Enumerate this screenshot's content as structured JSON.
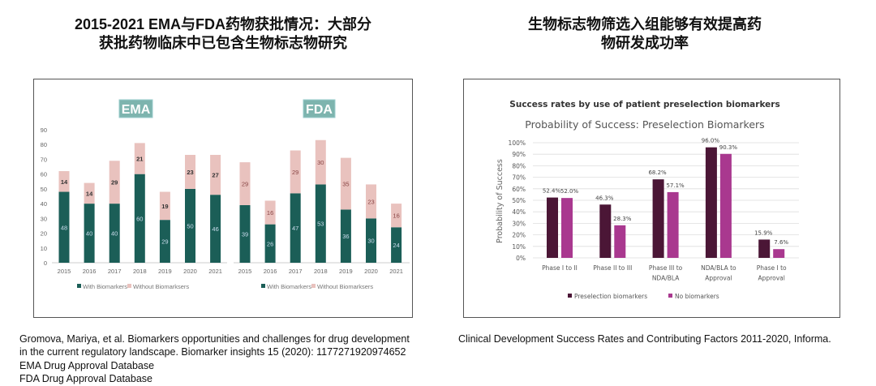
{
  "left_title": [
    "2015-2021  EMA与FDA药物获批情况：大部分",
    "获批药物临床中已包含生物标志物研究"
  ],
  "right_title": [
    "生物标志物筛选入组能够有效提高药",
    "物研发成功率"
  ],
  "left_caption": [
    "Gromova, Mariya, et al. Biomarkers opportunities and challenges for drug development",
    "in the current regulatory landscape. Biomarker insights 15 (2020): 1177271920974652",
    "EMA Drug Approval Database",
    "FDA Drug Approval Database"
  ],
  "right_caption": "Clinical Development Success Rates and Contributing Factors 2011-2020,  Informa.",
  "colors": {
    "with": "#1b5e57",
    "without": "#e9c2be",
    "badge": "#7db4ae",
    "pre": "#4b1636",
    "nob": "#a9388f"
  },
  "chart_data": [
    {
      "type": "bar",
      "stacked": true,
      "panels": [
        {
          "name": "EMA",
          "categories": [
            "2015",
            "2016",
            "2017",
            "2018",
            "2019",
            "2020",
            "2021"
          ],
          "series": [
            {
              "name": "With Biomarkers",
              "values": [
                48,
                40,
                40,
                60,
                29,
                50,
                46
              ]
            },
            {
              "name": "Without Biomarksers",
              "values": [
                14,
                14,
                29,
                21,
                19,
                23,
                27
              ]
            }
          ]
        },
        {
          "name": "FDA",
          "categories": [
            "2015",
            "2016",
            "2017",
            "2018",
            "2019",
            "2020",
            "2021"
          ],
          "series": [
            {
              "name": "With Biomarkers",
              "values": [
                39,
                26,
                47,
                53,
                36,
                30,
                24
              ]
            },
            {
              "name": "Without Biomarksers",
              "values": [
                29,
                16,
                29,
                30,
                35,
                23,
                16
              ]
            }
          ]
        }
      ],
      "yticks": [
        0,
        10,
        20,
        30,
        40,
        50,
        60,
        70,
        80,
        90
      ],
      "ylim": [
        0,
        90
      ],
      "legend": "bottom"
    },
    {
      "type": "bar",
      "header": "Success rates by use of patient preselection biomarkers",
      "title": "Probability of Success: Preselection Biomarkers",
      "ylabel": "Probability of Success",
      "categories": [
        [
          "Phase I to II"
        ],
        [
          "Phase II to III"
        ],
        [
          "Phase III to",
          "NDA/BLA"
        ],
        [
          "NDA/BLA to",
          "Approval"
        ],
        [
          "Phase I to",
          "Approval"
        ]
      ],
      "series": [
        {
          "name": "Preselection biomarkers",
          "values": [
            52.4,
            46.3,
            68.2,
            96.0,
            15.9
          ]
        },
        {
          "name": "No biomarkers",
          "values": [
            52.0,
            28.3,
            57.1,
            90.3,
            7.6
          ]
        }
      ],
      "yticks": [
        "0%",
        "10%",
        "20%",
        "30%",
        "40%",
        "50%",
        "60%",
        "70%",
        "80%",
        "90%",
        "100%"
      ],
      "ylim": [
        0,
        100
      ],
      "grid": true,
      "legend": "bottom"
    }
  ]
}
